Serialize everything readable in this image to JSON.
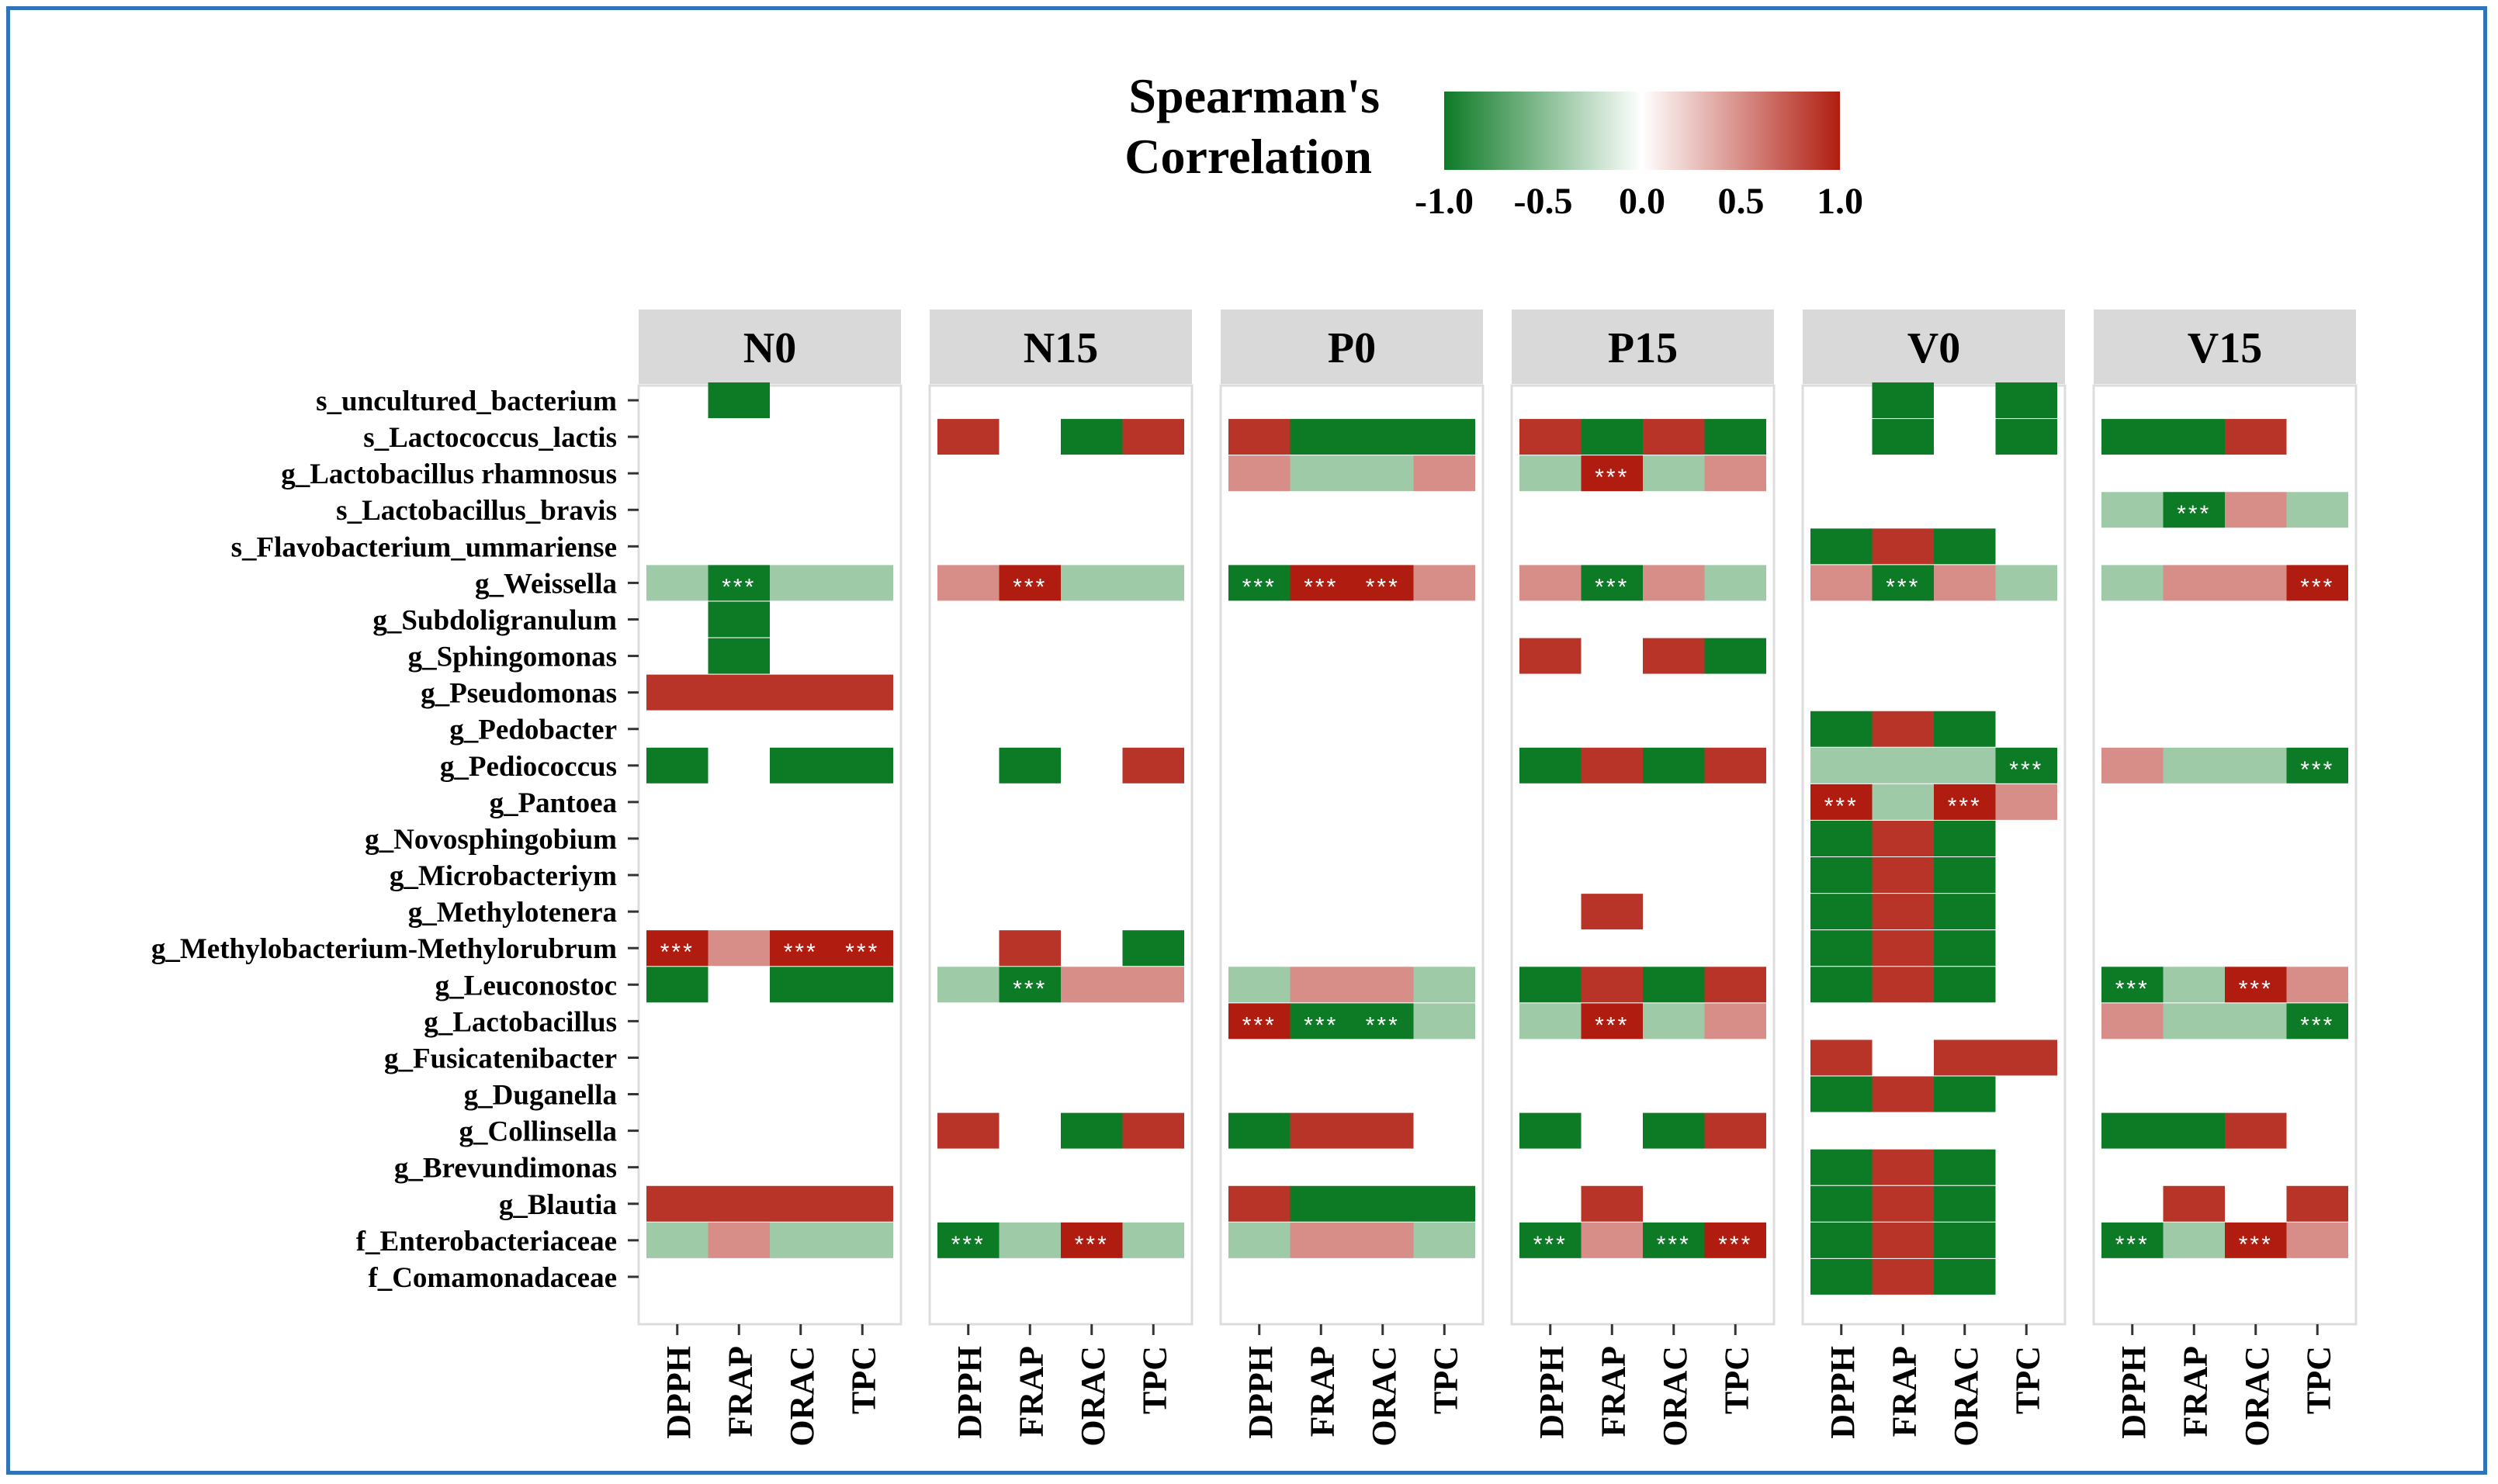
{
  "chart_data": {
    "type": "heatmap",
    "legend": {
      "title_line1": "Spearman's",
      "title_line2": "Correlation",
      "ticks": [
        -1.0,
        -0.5,
        0.0,
        0.5,
        1.0
      ],
      "tick_labels": [
        "-1.0",
        "-0.5",
        "0.0",
        "0.5",
        "1.0"
      ],
      "low_color": "#0d7a26",
      "mid_color": "#ffffff",
      "high_color": "#b01d10"
    },
    "panel_bg": "#ffffff",
    "strip_bg": "#d9d9d9",
    "panels": [
      "N0",
      "N15",
      "P0",
      "P15",
      "V0",
      "V15"
    ],
    "x_labels": [
      "DPPH",
      "FRAP",
      "ORAC",
      "TPC"
    ],
    "y_labels": [
      "s_uncultured_bacterium",
      "s_Lactococcus_lactis",
      "g_Lactobacillus rhamnosus",
      "s_Lactobacillus_bravis",
      "s_Flavobacterium_ummariense",
      "g_Weissella",
      "g_Subdoligranulum",
      "g_Sphingomonas",
      "g_Pseudomonas",
      "g_Pedobacter",
      "g_Pediococcus",
      "g_Pantoea",
      "g_Novosphingobium",
      "g_Microbacteriym",
      "g_Methylotenera",
      "g_Methylobacterium-Methylorubrum",
      "g_Leuconostoc",
      "g_Lactobacillus",
      "g_Fusicatenibacter",
      "g_Duganella",
      "g_Collinsella",
      "g_Brevundimonas",
      "g_Blautia",
      "f_Enterobacteriaceae",
      "f_Comamonadaceae"
    ],
    "significance_mark": "***",
    "cells": {
      "N0": [
        [
          0,
          1,
          -1
        ],
        [
          5,
          0,
          -0.4
        ],
        [
          5,
          1,
          -1,
          1
        ],
        [
          5,
          2,
          -0.4
        ],
        [
          5,
          3,
          -0.4
        ],
        [
          6,
          1,
          -1
        ],
        [
          7,
          1,
          -1
        ],
        [
          8,
          0,
          0.9
        ],
        [
          8,
          1,
          0.9
        ],
        [
          8,
          2,
          0.9
        ],
        [
          8,
          3,
          0.9
        ],
        [
          10,
          0,
          -1
        ],
        [
          10,
          2,
          -1
        ],
        [
          10,
          3,
          -1
        ],
        [
          15,
          0,
          1,
          1
        ],
        [
          15,
          1,
          0.5
        ],
        [
          15,
          2,
          1,
          1
        ],
        [
          15,
          3,
          1,
          1
        ],
        [
          16,
          0,
          -1
        ],
        [
          16,
          2,
          -1
        ],
        [
          16,
          3,
          -1
        ],
        [
          22,
          0,
          0.9
        ],
        [
          22,
          1,
          0.9
        ],
        [
          22,
          2,
          0.9
        ],
        [
          22,
          3,
          0.9
        ],
        [
          23,
          0,
          -0.4
        ],
        [
          23,
          1,
          0.5
        ],
        [
          23,
          2,
          -0.4
        ],
        [
          23,
          3,
          -0.4
        ]
      ],
      "N15": [
        [
          1,
          0,
          0.9
        ],
        [
          1,
          2,
          -1
        ],
        [
          1,
          3,
          0.9
        ],
        [
          5,
          0,
          0.5
        ],
        [
          5,
          1,
          1,
          1
        ],
        [
          5,
          2,
          -0.4
        ],
        [
          5,
          3,
          -0.4
        ],
        [
          10,
          1,
          -1
        ],
        [
          10,
          3,
          0.9
        ],
        [
          15,
          1,
          0.9
        ],
        [
          15,
          3,
          -1
        ],
        [
          16,
          0,
          -0.4
        ],
        [
          16,
          1,
          -1,
          1
        ],
        [
          16,
          2,
          0.5
        ],
        [
          16,
          3,
          0.5
        ],
        [
          20,
          0,
          0.9
        ],
        [
          20,
          2,
          -1
        ],
        [
          20,
          3,
          0.9
        ],
        [
          23,
          0,
          -1,
          1
        ],
        [
          23,
          1,
          -0.4
        ],
        [
          23,
          2,
          1,
          1
        ],
        [
          23,
          3,
          -0.4
        ]
      ],
      "P0": [
        [
          1,
          0,
          0.9
        ],
        [
          1,
          1,
          -1
        ],
        [
          1,
          2,
          -1
        ],
        [
          1,
          3,
          -1
        ],
        [
          2,
          0,
          0.5
        ],
        [
          2,
          1,
          -0.4
        ],
        [
          2,
          2,
          -0.4
        ],
        [
          2,
          3,
          0.5
        ],
        [
          5,
          0,
          -1,
          1
        ],
        [
          5,
          1,
          1,
          1
        ],
        [
          5,
          2,
          1,
          1
        ],
        [
          5,
          3,
          0.5
        ],
        [
          16,
          0,
          -0.4
        ],
        [
          16,
          1,
          0.5
        ],
        [
          16,
          2,
          0.5
        ],
        [
          16,
          3,
          -0.4
        ],
        [
          17,
          0,
          1,
          1
        ],
        [
          17,
          1,
          -1,
          1
        ],
        [
          17,
          2,
          -1,
          1
        ],
        [
          17,
          3,
          -0.4
        ],
        [
          20,
          0,
          -1
        ],
        [
          20,
          1,
          0.9
        ],
        [
          20,
          2,
          0.9
        ],
        [
          22,
          0,
          0.9
        ],
        [
          22,
          1,
          -1
        ],
        [
          22,
          2,
          -1
        ],
        [
          22,
          3,
          -1
        ],
        [
          23,
          0,
          -0.4
        ],
        [
          23,
          1,
          0.5
        ],
        [
          23,
          2,
          0.5
        ],
        [
          23,
          3,
          -0.4
        ]
      ],
      "P15": [
        [
          1,
          0,
          0.9
        ],
        [
          1,
          1,
          -1
        ],
        [
          1,
          2,
          0.9
        ],
        [
          1,
          3,
          -1
        ],
        [
          2,
          0,
          -0.4
        ],
        [
          2,
          1,
          1,
          1
        ],
        [
          2,
          2,
          -0.4
        ],
        [
          2,
          3,
          0.5
        ],
        [
          5,
          0,
          0.5
        ],
        [
          5,
          1,
          -1,
          1
        ],
        [
          5,
          2,
          0.5
        ],
        [
          5,
          3,
          -0.4
        ],
        [
          7,
          0,
          0.9
        ],
        [
          7,
          2,
          0.9
        ],
        [
          7,
          3,
          -1
        ],
        [
          10,
          0,
          -1
        ],
        [
          10,
          1,
          0.9
        ],
        [
          10,
          2,
          -1
        ],
        [
          10,
          3,
          0.9
        ],
        [
          14,
          1,
          0.9
        ],
        [
          16,
          0,
          -1
        ],
        [
          16,
          1,
          0.9
        ],
        [
          16,
          2,
          -1
        ],
        [
          16,
          3,
          0.9
        ],
        [
          17,
          0,
          -0.4
        ],
        [
          17,
          1,
          1,
          1
        ],
        [
          17,
          2,
          -0.4
        ],
        [
          17,
          3,
          0.5
        ],
        [
          20,
          0,
          -1
        ],
        [
          20,
          2,
          -1
        ],
        [
          20,
          3,
          0.9
        ],
        [
          22,
          1,
          0.9
        ],
        [
          23,
          0,
          -1,
          1
        ],
        [
          23,
          1,
          0.5
        ],
        [
          23,
          2,
          -1,
          1
        ],
        [
          23,
          3,
          1,
          1
        ]
      ],
      "V0": [
        [
          0,
          1,
          -1
        ],
        [
          0,
          3,
          -1
        ],
        [
          1,
          1,
          -1
        ],
        [
          1,
          3,
          -1
        ],
        [
          4,
          0,
          -1
        ],
        [
          4,
          1,
          0.9
        ],
        [
          4,
          2,
          -1
        ],
        [
          5,
          0,
          0.5
        ],
        [
          5,
          1,
          -1,
          1
        ],
        [
          5,
          2,
          0.5
        ],
        [
          5,
          3,
          -0.4
        ],
        [
          9,
          0,
          -1
        ],
        [
          9,
          1,
          0.9
        ],
        [
          9,
          2,
          -1
        ],
        [
          10,
          0,
          -0.4
        ],
        [
          10,
          1,
          -0.4
        ],
        [
          10,
          2,
          -0.4
        ],
        [
          10,
          3,
          -1,
          1
        ],
        [
          11,
          0,
          1,
          1
        ],
        [
          11,
          1,
          -0.4
        ],
        [
          11,
          2,
          1,
          1
        ],
        [
          11,
          3,
          0.5
        ],
        [
          12,
          0,
          -1
        ],
        [
          12,
          1,
          0.9
        ],
        [
          12,
          2,
          -1
        ],
        [
          13,
          0,
          -1
        ],
        [
          13,
          1,
          0.9
        ],
        [
          13,
          2,
          -1
        ],
        [
          14,
          0,
          -1
        ],
        [
          14,
          1,
          0.9
        ],
        [
          14,
          2,
          -1
        ],
        [
          15,
          0,
          -1
        ],
        [
          15,
          1,
          0.9
        ],
        [
          15,
          2,
          -1
        ],
        [
          16,
          0,
          -1
        ],
        [
          16,
          1,
          0.9
        ],
        [
          16,
          2,
          -1
        ],
        [
          18,
          0,
          0.9
        ],
        [
          18,
          2,
          0.9
        ],
        [
          18,
          3,
          0.9
        ],
        [
          19,
          0,
          -1
        ],
        [
          19,
          1,
          0.9
        ],
        [
          19,
          2,
          -1
        ],
        [
          21,
          0,
          -1
        ],
        [
          21,
          1,
          0.9
        ],
        [
          21,
          2,
          -1
        ],
        [
          22,
          0,
          -1
        ],
        [
          22,
          1,
          0.9
        ],
        [
          22,
          2,
          -1
        ],
        [
          23,
          0,
          -1
        ],
        [
          23,
          1,
          0.9
        ],
        [
          23,
          2,
          -1
        ],
        [
          24,
          0,
          -1
        ],
        [
          24,
          1,
          0.9
        ],
        [
          24,
          2,
          -1
        ]
      ],
      "V15": [
        [
          1,
          0,
          -1
        ],
        [
          1,
          1,
          -1
        ],
        [
          1,
          2,
          0.9
        ],
        [
          3,
          0,
          -0.4
        ],
        [
          3,
          1,
          -1,
          1
        ],
        [
          3,
          2,
          0.5
        ],
        [
          3,
          3,
          -0.4
        ],
        [
          5,
          0,
          -0.4
        ],
        [
          5,
          1,
          0.5
        ],
        [
          5,
          2,
          0.5
        ],
        [
          5,
          3,
          1,
          1
        ],
        [
          10,
          0,
          0.5
        ],
        [
          10,
          1,
          -0.4
        ],
        [
          10,
          2,
          -0.4
        ],
        [
          10,
          3,
          -1,
          1
        ],
        [
          16,
          0,
          -1,
          1
        ],
        [
          16,
          1,
          -0.4
        ],
        [
          16,
          2,
          1,
          1
        ],
        [
          16,
          3,
          0.5
        ],
        [
          17,
          0,
          0.5
        ],
        [
          17,
          1,
          -0.4
        ],
        [
          17,
          2,
          -0.4
        ],
        [
          17,
          3,
          -1,
          1
        ],
        [
          20,
          0,
          -1
        ],
        [
          20,
          1,
          -1
        ],
        [
          20,
          2,
          0.9
        ],
        [
          22,
          1,
          0.9
        ],
        [
          22,
          3,
          0.9
        ],
        [
          23,
          0,
          -1,
          1
        ],
        [
          23,
          1,
          -0.4
        ],
        [
          23,
          2,
          1,
          1
        ],
        [
          23,
          3,
          0.5
        ]
      ]
    }
  }
}
